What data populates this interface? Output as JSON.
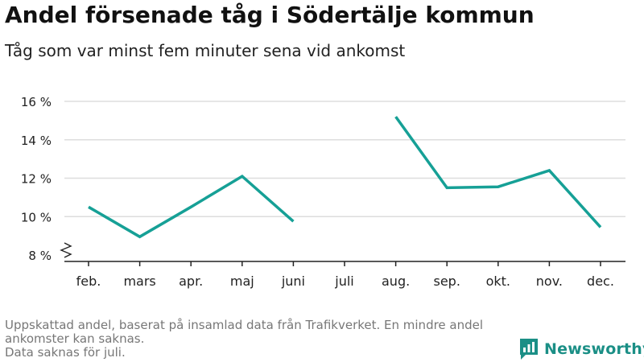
{
  "header": {
    "title": "Andel försenade tåg i Södertälje kommun",
    "subtitle": "Tåg som var minst fem minuter sena vid ankomst"
  },
  "chart_data": {
    "type": "line",
    "title": "Andel försenade tåg i Södertälje kommun",
    "subtitle": "Tåg som var minst fem minuter sena vid ankomst",
    "categories": [
      "feb.",
      "mars",
      "apr.",
      "maj",
      "juni",
      "juli",
      "aug.",
      "sep.",
      "okt.",
      "nov.",
      "dec."
    ],
    "values": [
      10.5,
      8.95,
      10.5,
      12.1,
      9.75,
      null,
      15.2,
      11.5,
      11.55,
      12.4,
      9.45
    ],
    "y_ticks": [
      8,
      10,
      12,
      14,
      16
    ],
    "y_tick_labels": [
      "8 %",
      "10 %",
      "12 %",
      "14 %",
      "16 %"
    ],
    "ylim": [
      8,
      16
    ],
    "ylabel": "",
    "xlabel": "",
    "y_axis_break": true,
    "grid": true,
    "line_color": "#16a096",
    "grid_color": "#dddddd"
  },
  "footer": {
    "note": "Uppskattad andel, baserat på insamlad data från Trafikverket. En mindre andel ankomster kan saknas.",
    "missing_note": "Data saknas för juli.",
    "brand_name": "Newsworthy",
    "brand_color": "#1b8f86",
    "brand_icon": "bar-chart-speech-bubble-icon"
  }
}
